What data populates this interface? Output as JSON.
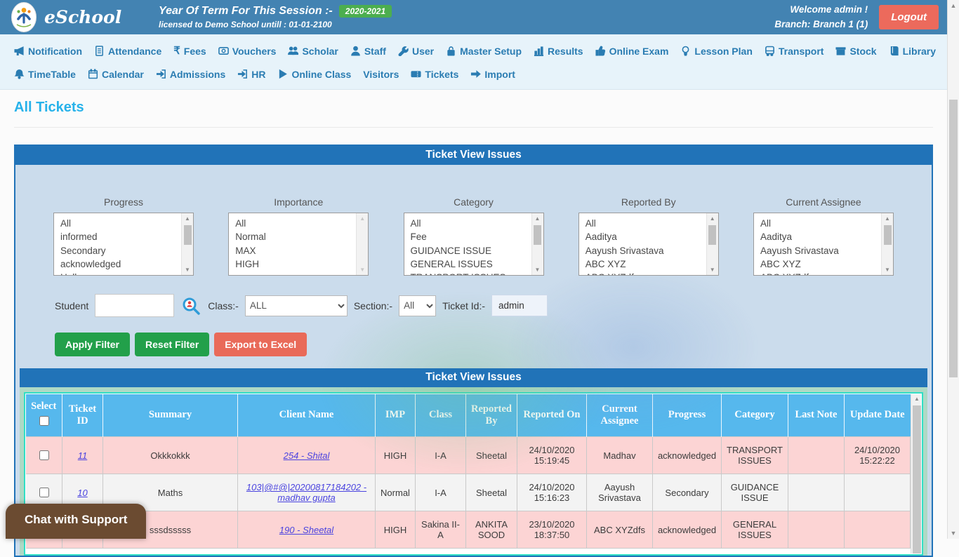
{
  "colors": {
    "header_blue": "#4383b2",
    "panel_blue": "#2173b8",
    "badge_green": "#4cae4f",
    "logout_red": "#ec6a5c",
    "btn_green": "#22a04a",
    "btn_salmon": "#e96a59",
    "thead_blue": "#56b8ed",
    "row_pink": "#fcd4d4",
    "mint": "#aed9c5",
    "turquoise": "#30dfc5",
    "link_blue": "#4a43df"
  },
  "header": {
    "brand": "eSchool",
    "session_label": "Year Of Term For This Session :-",
    "session_badge": "2020-2021",
    "license_text": "licensed to Demo School untill : 01-01-2100",
    "welcome_line1": "Welcome admin !",
    "welcome_line2": "Branch: Branch 1 (1)",
    "logout_label": "Logout"
  },
  "nav": {
    "row1": [
      {
        "label": "Notification",
        "icon": "megaphone"
      },
      {
        "label": "Attendance",
        "icon": "document"
      },
      {
        "label": "Fees",
        "icon": "rupee"
      },
      {
        "label": "Vouchers",
        "icon": "voucher"
      },
      {
        "label": "Scholar",
        "icon": "users"
      },
      {
        "label": "Staff",
        "icon": "user"
      },
      {
        "label": "User",
        "icon": "wrench"
      },
      {
        "label": "Master Setup",
        "icon": "lock"
      },
      {
        "label": "Results",
        "icon": "bar-chart"
      },
      {
        "label": "Online Exam",
        "icon": "thumbs-up"
      },
      {
        "label": "Lesson Plan",
        "icon": "bulb"
      },
      {
        "label": "Transport",
        "icon": "bus"
      },
      {
        "label": "Stock",
        "icon": "box"
      },
      {
        "label": "Library",
        "icon": "book"
      }
    ],
    "row2": [
      {
        "label": "TimeTable",
        "icon": "bell"
      },
      {
        "label": "Calendar",
        "icon": "calendar"
      },
      {
        "label": "Admissions",
        "icon": "sign-in"
      },
      {
        "label": "HR",
        "icon": "sign-in"
      },
      {
        "label": "Online Class",
        "icon": "play"
      },
      {
        "label": "Visitors",
        "icon": null
      },
      {
        "label": "Tickets",
        "icon": "ticket"
      },
      {
        "label": "Import",
        "icon": "arrow-right"
      }
    ]
  },
  "page": {
    "title": "All Tickets"
  },
  "panel": {
    "header": "Ticket View Issues",
    "filters": [
      {
        "label": "Progress",
        "scrollable": true,
        "options": [
          "All",
          "informed",
          "Secondary",
          "acknowledged",
          "Hello"
        ]
      },
      {
        "label": "Importance",
        "scrollable": false,
        "options": [
          "All",
          "Normal",
          "MAX",
          "HIGH"
        ]
      },
      {
        "label": "Category",
        "scrollable": true,
        "options": [
          "All",
          "Fee",
          "GUIDANCE ISSUE",
          "GENERAL ISSUES",
          "TRANSPORT ISSUES"
        ]
      },
      {
        "label": "Reported By",
        "scrollable": true,
        "options": [
          "All",
          "Aaditya",
          "Aayush Srivastava",
          "ABC XYZ",
          "ABC XYZdfs"
        ]
      },
      {
        "label": "Current Assignee",
        "scrollable": true,
        "options": [
          "All",
          "Aaditya",
          "Aayush Srivastava",
          "ABC XYZ",
          "ABC XYZdfs"
        ]
      }
    ],
    "student_label": "Student",
    "class_label": "Class:-",
    "class_value": "ALL",
    "section_label": "Section:-",
    "section_value": "All",
    "ticket_id_label": "Ticket Id:-",
    "ticket_id_value": "admin",
    "buttons": {
      "apply": "Apply Filter",
      "reset": "Reset Filter",
      "export": "Export to Excel"
    }
  },
  "table": {
    "title": "Ticket View Issues",
    "columns": [
      "Select",
      "Ticket ID",
      "Summary",
      "Client Name",
      "IMP",
      "Class",
      "Reported By",
      "Reported On",
      "Current Assignee",
      "Progress",
      "Category",
      "Last Note",
      "Update Date"
    ],
    "rows": [
      {
        "ticket_id": "11",
        "summary": "Okkkokkk",
        "client": "254 - Shital",
        "imp": "HIGH",
        "class": "I-A",
        "reported_by": "Sheetal",
        "reported_on": "24/10/2020 15:19:45",
        "assignee": "Madhav",
        "progress": "acknowledged",
        "category": "TRANSPORT ISSUES",
        "last_note": "",
        "update_date": "24/10/2020 15:22:22"
      },
      {
        "ticket_id": "10",
        "summary": "Maths",
        "client": "103|@#@|20200817184202 - madhav gupta",
        "imp": "Normal",
        "class": "I-A",
        "reported_by": "Sheetal",
        "reported_on": "24/10/2020 15:16:23",
        "assignee": "Aayush Srivastava",
        "progress": "Secondary",
        "category": "GUIDANCE ISSUE",
        "last_note": "",
        "update_date": ""
      },
      {
        "ticket_id": "",
        "summary": "sssdsssss",
        "client": "190 - Sheetal",
        "imp": "HIGH",
        "class": "Sakina II-A",
        "reported_by": "ANKITA SOOD",
        "reported_on": "23/10/2020 18:37:50",
        "assignee": "ABC XYZdfs",
        "progress": "acknowledged",
        "category": "GENERAL ISSUES",
        "last_note": "",
        "update_date": ""
      }
    ]
  },
  "chat_button_label": "Chat with Support"
}
